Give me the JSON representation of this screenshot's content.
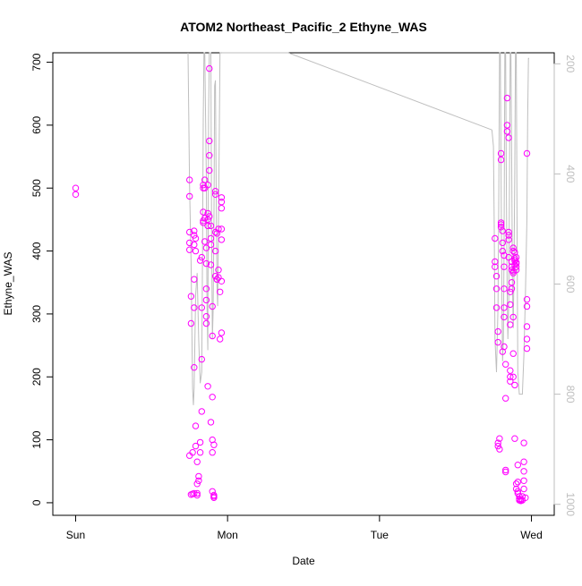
{
  "chart_data": {
    "type": "scatter",
    "title": "ATOM2 Northeast_Pacific_2 Ethyne_WAS",
    "xlabel": "Date",
    "ylabel": "Ethyne_WAS",
    "x_ticks": [
      "Sun",
      "Mon",
      "Tue",
      "Wed"
    ],
    "x_tick_days": [
      0,
      1,
      2,
      3
    ],
    "xlim_days": [
      -0.15,
      3.15
    ],
    "ylim": [
      -20,
      715
    ],
    "y_ticks": [
      0,
      100,
      200,
      300,
      400,
      500,
      600,
      700
    ],
    "y2_label": "",
    "y2_ticks": [
      200,
      400,
      600,
      800,
      1000
    ],
    "y2_lim": [
      1020,
      180
    ],
    "grid": false,
    "colors": {
      "points": "#ff00ff",
      "altitude_line": "#bebebe",
      "axis": "#000000",
      "y2_axis": "#bebebe"
    },
    "series": [
      {
        "marker": "open-circle",
        "points": [
          [
            0.0,
            500
          ],
          [
            0.0,
            490
          ],
          [
            0.75,
            513
          ],
          [
            0.75,
            487
          ],
          [
            0.75,
            430
          ],
          [
            0.75,
            413
          ],
          [
            0.75,
            402
          ],
          [
            0.76,
            328
          ],
          [
            0.76,
            285
          ],
          [
            0.75,
            75
          ],
          [
            0.77,
            80
          ],
          [
            0.78,
            15
          ],
          [
            0.77,
            14
          ],
          [
            0.76,
            13
          ],
          [
            0.78,
            432
          ],
          [
            0.78,
            425
          ],
          [
            0.79,
            420
          ],
          [
            0.78,
            410
          ],
          [
            0.79,
            400
          ],
          [
            0.78,
            355
          ],
          [
            0.78,
            310
          ],
          [
            0.78,
            215
          ],
          [
            0.79,
            122
          ],
          [
            0.79,
            90
          ],
          [
            0.8,
            65
          ],
          [
            0.8,
            30
          ],
          [
            0.81,
            35
          ],
          [
            0.81,
            42
          ],
          [
            0.8,
            15
          ],
          [
            0.8,
            12
          ],
          [
            0.82,
            96
          ],
          [
            0.82,
            80
          ],
          [
            0.82,
            385
          ],
          [
            0.83,
            390
          ],
          [
            0.83,
            145
          ],
          [
            0.83,
            228
          ],
          [
            0.83,
            310
          ],
          [
            0.84,
            505
          ],
          [
            0.84,
            500
          ],
          [
            0.84,
            448
          ],
          [
            0.84,
            445
          ],
          [
            0.84,
            462
          ],
          [
            0.85,
            500
          ],
          [
            0.85,
            513
          ],
          [
            0.85,
            452
          ],
          [
            0.85,
            415
          ],
          [
            0.86,
            405
          ],
          [
            0.86,
            380
          ],
          [
            0.86,
            340
          ],
          [
            0.86,
            322
          ],
          [
            0.86,
            296
          ],
          [
            0.86,
            285
          ],
          [
            0.87,
            460
          ],
          [
            0.87,
            450
          ],
          [
            0.87,
            440
          ],
          [
            0.87,
            185
          ],
          [
            0.87,
            505
          ],
          [
            0.88,
            455
          ],
          [
            0.88,
            690
          ],
          [
            0.88,
            575
          ],
          [
            0.88,
            552
          ],
          [
            0.88,
            528
          ],
          [
            0.89,
            440
          ],
          [
            0.89,
            420
          ],
          [
            0.89,
            410
          ],
          [
            0.89,
            378
          ],
          [
            0.9,
            312
          ],
          [
            0.9,
            265
          ],
          [
            0.9,
            168
          ],
          [
            0.89,
            128
          ],
          [
            0.9,
            100
          ],
          [
            0.9,
            80
          ],
          [
            0.9,
            18
          ],
          [
            0.91,
            12
          ],
          [
            0.91,
            10
          ],
          [
            0.91,
            8
          ],
          [
            0.91,
            92
          ],
          [
            0.92,
            495
          ],
          [
            0.92,
            490
          ],
          [
            0.92,
            430
          ],
          [
            0.92,
            400
          ],
          [
            0.92,
            360
          ],
          [
            0.93,
            355
          ],
          [
            0.93,
            355
          ],
          [
            0.94,
            435
          ],
          [
            0.93,
            428
          ],
          [
            0.94,
            370
          ],
          [
            0.94,
            358
          ],
          [
            0.95,
            335
          ],
          [
            0.95,
            260
          ],
          [
            0.96,
            485
          ],
          [
            0.96,
            478
          ],
          [
            0.96,
            468
          ],
          [
            0.96,
            435
          ],
          [
            0.96,
            418
          ],
          [
            0.96,
            352
          ],
          [
            0.96,
            270
          ],
          [
            2.76,
            420
          ],
          [
            2.76,
            383
          ],
          [
            2.76,
            375
          ],
          [
            2.77,
            360
          ],
          [
            2.77,
            340
          ],
          [
            2.77,
            310
          ],
          [
            2.78,
            272
          ],
          [
            2.78,
            255
          ],
          [
            2.78,
            95
          ],
          [
            2.78,
            90
          ],
          [
            2.79,
            102
          ],
          [
            2.79,
            85
          ],
          [
            2.8,
            555
          ],
          [
            2.8,
            545
          ],
          [
            2.8,
            445
          ],
          [
            2.8,
            442
          ],
          [
            2.8,
            438
          ],
          [
            2.81,
            432
          ],
          [
            2.81,
            413
          ],
          [
            2.81,
            400
          ],
          [
            2.82,
            393
          ],
          [
            2.82,
            375
          ],
          [
            2.82,
            340
          ],
          [
            2.82,
            310
          ],
          [
            2.82,
            295
          ],
          [
            2.82,
            248
          ],
          [
            2.81,
            240
          ],
          [
            2.83,
            220
          ],
          [
            2.83,
            166
          ],
          [
            2.83,
            52
          ],
          [
            2.83,
            49
          ],
          [
            2.84,
            643
          ],
          [
            2.84,
            600
          ],
          [
            2.84,
            590
          ],
          [
            2.85,
            580
          ],
          [
            2.85,
            430
          ],
          [
            2.85,
            425
          ],
          [
            2.85,
            418
          ],
          [
            2.85,
            390
          ],
          [
            2.86,
            335
          ],
          [
            2.86,
            315
          ],
          [
            2.86,
            283
          ],
          [
            2.86,
            210
          ],
          [
            2.86,
            200
          ],
          [
            2.86,
            193
          ],
          [
            2.87,
            383
          ],
          [
            2.87,
            375
          ],
          [
            2.87,
            370
          ],
          [
            2.87,
            350
          ],
          [
            2.87,
            340
          ],
          [
            2.88,
            405
          ],
          [
            2.88,
            400
          ],
          [
            2.88,
            368
          ],
          [
            2.88,
            365
          ],
          [
            2.88,
            295
          ],
          [
            2.88,
            237
          ],
          [
            2.88,
            200
          ],
          [
            2.89,
            398
          ],
          [
            2.89,
            388
          ],
          [
            2.89,
            385
          ],
          [
            2.89,
            385
          ],
          [
            2.89,
            378
          ],
          [
            2.89,
            187
          ],
          [
            2.89,
            102
          ],
          [
            2.9,
            390
          ],
          [
            2.9,
            382
          ],
          [
            2.9,
            380
          ],
          [
            2.9,
            375
          ],
          [
            2.9,
            370
          ],
          [
            2.9,
            30
          ],
          [
            2.9,
            22
          ],
          [
            2.91,
            18
          ],
          [
            2.91,
            15
          ],
          [
            2.91,
            60
          ],
          [
            2.91,
            33
          ],
          [
            2.92,
            10
          ],
          [
            2.92,
            6
          ],
          [
            2.92,
            4
          ],
          [
            2.93,
            3
          ],
          [
            2.93,
            5
          ],
          [
            2.94,
            4
          ],
          [
            2.94,
            10
          ],
          [
            2.95,
            95
          ],
          [
            2.95,
            65
          ],
          [
            2.95,
            50
          ],
          [
            2.95,
            35
          ],
          [
            2.95,
            22
          ],
          [
            2.96,
            8
          ],
          [
            2.97,
            555
          ],
          [
            2.97,
            323
          ],
          [
            2.97,
            312
          ],
          [
            2.97,
            280
          ],
          [
            2.97,
            260
          ],
          [
            2.97,
            245
          ]
        ]
      }
    ],
    "altitude_line": [
      [
        0.74,
        180
      ],
      [
        0.75,
        420
      ],
      [
        0.76,
        560
      ],
      [
        0.77,
        790
      ],
      [
        0.775,
        820
      ],
      [
        0.78,
        790
      ],
      [
        0.785,
        700
      ],
      [
        0.79,
        620
      ],
      [
        0.8,
        580
      ],
      [
        0.81,
        700
      ],
      [
        0.82,
        780
      ],
      [
        0.83,
        760
      ],
      [
        0.835,
        540
      ],
      [
        0.84,
        300
      ],
      [
        0.845,
        180
      ],
      [
        0.85,
        180
      ],
      [
        0.86,
        400
      ],
      [
        0.865,
        640
      ],
      [
        0.87,
        720
      ],
      [
        0.875,
        300
      ],
      [
        0.88,
        180
      ],
      [
        0.89,
        180
      ],
      [
        0.895,
        500
      ],
      [
        0.9,
        700
      ],
      [
        0.905,
        650
      ],
      [
        0.91,
        500
      ],
      [
        0.915,
        240
      ],
      [
        0.92,
        230
      ],
      [
        0.925,
        420
      ],
      [
        0.93,
        600
      ],
      [
        0.935,
        640
      ],
      [
        0.94,
        500
      ],
      [
        0.95,
        180
      ],
      [
        0.96,
        180
      ],
      [
        2.74,
        320
      ],
      [
        2.75,
        350
      ],
      [
        2.755,
        500
      ],
      [
        2.76,
        700
      ],
      [
        2.77,
        760
      ],
      [
        2.78,
        640
      ],
      [
        2.785,
        430
      ],
      [
        2.79,
        180
      ],
      [
        2.795,
        180
      ],
      [
        2.8,
        400
      ],
      [
        2.805,
        620
      ],
      [
        2.81,
        740
      ],
      [
        2.815,
        700
      ],
      [
        2.82,
        520
      ],
      [
        2.825,
        180
      ],
      [
        2.83,
        180
      ],
      [
        2.835,
        420
      ],
      [
        2.84,
        610
      ],
      [
        2.845,
        700
      ],
      [
        2.85,
        640
      ],
      [
        2.855,
        450
      ],
      [
        2.86,
        180
      ],
      [
        2.865,
        180
      ],
      [
        2.87,
        380
      ],
      [
        2.875,
        600
      ],
      [
        2.88,
        680
      ],
      [
        2.885,
        580
      ],
      [
        2.89,
        400
      ],
      [
        2.895,
        180
      ],
      [
        2.9,
        180
      ],
      [
        2.905,
        470
      ],
      [
        2.91,
        760
      ],
      [
        2.92,
        800
      ],
      [
        2.93,
        800
      ],
      [
        2.94,
        800
      ],
      [
        2.95,
        730
      ],
      [
        2.96,
        620
      ],
      [
        2.97,
        480
      ],
      [
        2.975,
        300
      ],
      [
        2.98,
        190
      ],
      [
        2.985,
        190
      ]
    ],
    "altitude_connector": [
      [
        0.96,
        180
      ],
      [
        1.4,
        180
      ],
      [
        2.74,
        320
      ]
    ]
  }
}
